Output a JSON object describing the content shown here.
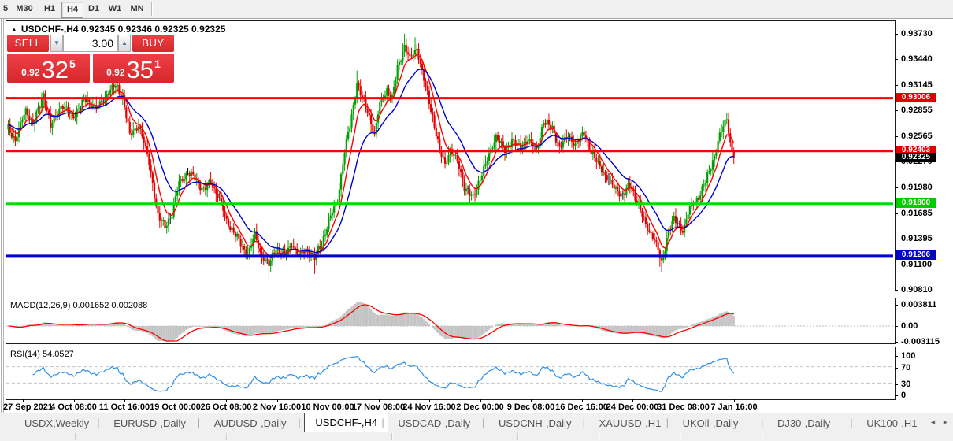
{
  "toolbar": {
    "items": [
      "5",
      "M30",
      "H1",
      "H4",
      "D1",
      "W1",
      "MN"
    ],
    "active": "H4"
  },
  "chart": {
    "collapse_icon": "▲",
    "title": "USDCHF-,H4 0.92345 0.92346 0.92325 0.92325"
  },
  "trade_panel": {
    "sell_label": "SELL",
    "buy_label": "BUY",
    "volume": "3.00",
    "spin_down_icon": "▼",
    "spin_up_icon": "▲",
    "sell_price": {
      "base": "0.92",
      "big": "32",
      "sup": "5"
    },
    "buy_price": {
      "base": "0.92",
      "big": "35",
      "sup": "1"
    }
  },
  "macd": {
    "label": "MACD(12,26,9) 0.001652 0.002088",
    "axis": [
      "0.003811",
      "0.00",
      "-0.003115"
    ]
  },
  "rsi": {
    "label": "RSI(14) 54.0527",
    "axis": [
      "100",
      "70",
      "30",
      "0"
    ]
  },
  "price_axis_labels": [
    "0.93730",
    "0.93440",
    "0.93145",
    "0.92855",
    "0.92565",
    "0.92270",
    "0.91980",
    "0.91685",
    "0.91395",
    "0.91100",
    "0.90810"
  ],
  "x_axis_labels": [
    "27 Sep 2021",
    "4 Oct 08:00",
    "11 Oct 16:00",
    "19 Oct 00:00",
    "26 Oct 08:00",
    "2 Nov 16:00",
    "10 Nov 00:00",
    "17 Nov 08:00",
    "24 Nov 16:00",
    "2 Dec 00:00",
    "9 Dec 08:00",
    "16 Dec 16:00",
    "24 Dec 00:00",
    "31 Dec 08:00",
    "7 Jan 16:00"
  ],
  "tabs": {
    "items": [
      "USDX,Weekly",
      "EURUSD-,Daily",
      "AUDUSD-,Daily",
      "USDCHF-,H4",
      "USDCAD-,Daily",
      "USDCNH-,Daily",
      "XAUUSD-,H1",
      "UKOil-,Daily",
      "DJ30-,Daily",
      "UK100-,H1"
    ],
    "active_index": 3,
    "scroll_left_icon": "◄",
    "scroll_right_icon": "►"
  },
  "colors": {
    "up_candle": "#00a000",
    "down_candle": "#e40000",
    "doji": "#000000",
    "ma_fast": "#ff0000",
    "ma_slow": "#0000cc",
    "hline_red": "#ff0000",
    "hline_green": "#00dd00",
    "hline_blue": "#0000dd",
    "badge_red": "#e00000",
    "badge_green": "#00cc00",
    "badge_blue": "#0000c8",
    "badge_black": "#000000",
    "macd_hist": "#c4c4c4",
    "macd_signal": "#ff0000",
    "rsi_line": "#2e8fe8",
    "level_dash": "#c4c4c4"
  },
  "chart_data": {
    "type": "candlestick+indicators",
    "symbol": "USDCHF",
    "timeframe": "H4",
    "ohlc_current": {
      "open": 0.92345,
      "high": 0.92346,
      "low": 0.92325,
      "close": 0.92325
    },
    "bid": 0.92325,
    "ask": 0.92351,
    "price_axis_values": [
      0.9373,
      0.9344,
      0.93145,
      0.92855,
      0.92565,
      0.9227,
      0.9198,
      0.91685,
      0.91395,
      0.911,
      0.9081
    ],
    "price_range": [
      0.9081,
      0.9373
    ],
    "hlines": [
      {
        "price": 0.93006,
        "label": "0.93006",
        "type": "resistance",
        "color_key": "hline_red",
        "badge": "badge_red"
      },
      {
        "price": 0.92403,
        "label": "0.92403",
        "type": "resistance",
        "color_key": "hline_red",
        "badge": "badge_red"
      },
      {
        "price": 0.918,
        "label": "0.91800",
        "type": "support",
        "color_key": "hline_green",
        "badge": "badge_green"
      },
      {
        "price": 0.91206,
        "label": "0.91206",
        "type": "support",
        "color_key": "hline_blue",
        "badge": "badge_blue"
      }
    ],
    "current_price": {
      "price": 0.92325,
      "label": "0.92325"
    },
    "bars_count": 413,
    "key_points": [
      [
        0,
        0.9267
      ],
      [
        4,
        0.9252
      ],
      [
        10,
        0.9288
      ],
      [
        14,
        0.927
      ],
      [
        20,
        0.9305
      ],
      [
        24,
        0.9268
      ],
      [
        30,
        0.9292
      ],
      [
        37,
        0.928
      ],
      [
        44,
        0.93
      ],
      [
        50,
        0.9288
      ],
      [
        57,
        0.9308
      ],
      [
        61,
        0.9315
      ],
      [
        65,
        0.9302
      ],
      [
        69,
        0.9258
      ],
      [
        74,
        0.927
      ],
      [
        77,
        0.925
      ],
      [
        80,
        0.9228
      ],
      [
        85,
        0.9165
      ],
      [
        89,
        0.9155
      ],
      [
        93,
        0.9168
      ],
      [
        97,
        0.9205
      ],
      [
        102,
        0.9215
      ],
      [
        106,
        0.921
      ],
      [
        111,
        0.9195
      ],
      [
        115,
        0.9205
      ],
      [
        120,
        0.9185
      ],
      [
        124,
        0.916
      ],
      [
        129,
        0.9145
      ],
      [
        133,
        0.913
      ],
      [
        136,
        0.9122
      ],
      [
        140,
        0.9145
      ],
      [
        143,
        0.9125
      ],
      [
        148,
        0.911
      ],
      [
        152,
        0.913
      ],
      [
        157,
        0.912
      ],
      [
        161,
        0.9135
      ],
      [
        165,
        0.912
      ],
      [
        169,
        0.9128
      ],
      [
        174,
        0.9118
      ],
      [
        178,
        0.9135
      ],
      [
        182,
        0.916
      ],
      [
        187,
        0.9185
      ],
      [
        191,
        0.924
      ],
      [
        195,
        0.928
      ],
      [
        198,
        0.9318
      ],
      [
        201,
        0.93
      ],
      [
        205,
        0.928
      ],
      [
        208,
        0.9258
      ],
      [
        211,
        0.9295
      ],
      [
        215,
        0.931
      ],
      [
        218,
        0.93
      ],
      [
        221,
        0.9335
      ],
      [
        225,
        0.936
      ],
      [
        228,
        0.9345
      ],
      [
        232,
        0.9358
      ],
      [
        235,
        0.933
      ],
      [
        238,
        0.9305
      ],
      [
        242,
        0.927
      ],
      [
        245,
        0.924
      ],
      [
        248,
        0.9225
      ],
      [
        251,
        0.9242
      ],
      [
        255,
        0.9228
      ],
      [
        259,
        0.92
      ],
      [
        264,
        0.9186
      ],
      [
        268,
        0.921
      ],
      [
        273,
        0.9235
      ],
      [
        277,
        0.9258
      ],
      [
        282,
        0.924
      ],
      [
        286,
        0.9253
      ],
      [
        291,
        0.9243
      ],
      [
        295,
        0.9255
      ],
      [
        300,
        0.924
      ],
      [
        304,
        0.9275
      ],
      [
        309,
        0.9265
      ],
      [
        313,
        0.9245
      ],
      [
        318,
        0.9257
      ],
      [
        322,
        0.9248
      ],
      [
        327,
        0.926
      ],
      [
        331,
        0.924
      ],
      [
        335,
        0.9225
      ],
      [
        340,
        0.921
      ],
      [
        344,
        0.9198
      ],
      [
        349,
        0.919
      ],
      [
        353,
        0.9202
      ],
      [
        358,
        0.9178
      ],
      [
        362,
        0.9155
      ],
      [
        367,
        0.914
      ],
      [
        371,
        0.9112
      ],
      [
        375,
        0.915
      ],
      [
        378,
        0.9162
      ],
      [
        383,
        0.915
      ],
      [
        387,
        0.9175
      ],
      [
        392,
        0.9188
      ],
      [
        396,
        0.9205
      ],
      [
        401,
        0.9235
      ],
      [
        404,
        0.9258
      ],
      [
        408,
        0.9278
      ],
      [
        410,
        0.925
      ],
      [
        412,
        0.92325
      ]
    ],
    "spikes": [
      {
        "i": 61,
        "high": 0.9325
      },
      {
        "i": 90,
        "low": 0.9146
      },
      {
        "i": 148,
        "low": 0.9092
      },
      {
        "i": 174,
        "low": 0.91
      },
      {
        "i": 198,
        "high": 0.9332
      },
      {
        "i": 225,
        "high": 0.9374
      },
      {
        "i": 231,
        "high": 0.937
      },
      {
        "i": 371,
        "low": 0.9102
      },
      {
        "i": 408,
        "high": 0.9283
      }
    ],
    "macd_values": {
      "main": 0.001652,
      "signal": 0.002088,
      "axis_max": 0.003811,
      "axis_min": -0.003115
    },
    "rsi_value": 54.0527,
    "rsi_levels": [
      70,
      30
    ]
  }
}
